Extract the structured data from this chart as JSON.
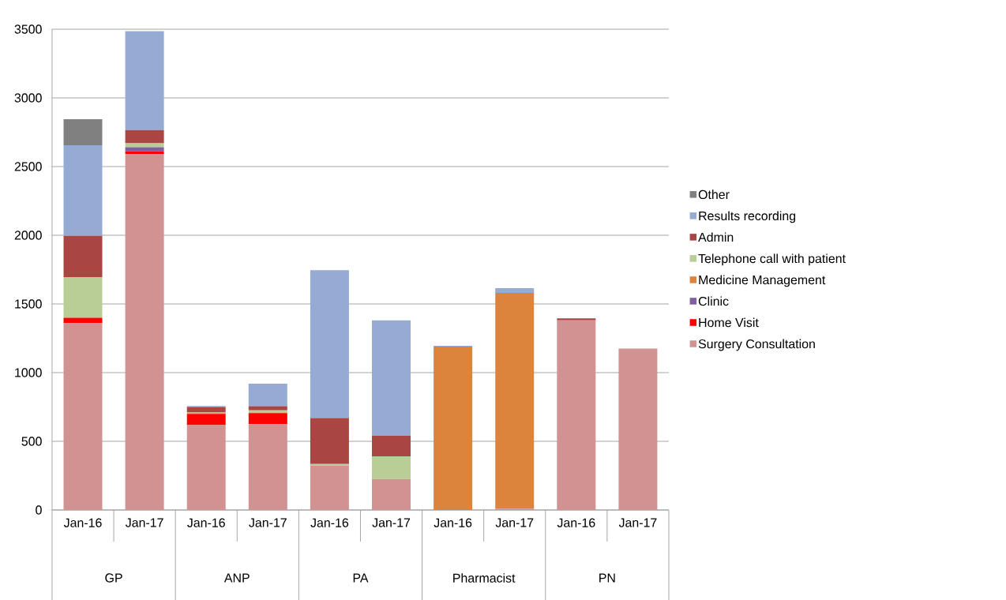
{
  "chart_data": {
    "type": "bar",
    "stacked": true,
    "categories": [
      "Jan-16",
      "Jan-17",
      "Jan-16",
      "Jan-17",
      "Jan-16",
      "Jan-17",
      "Jan-16",
      "Jan-17",
      "Jan-16",
      "Jan-17"
    ],
    "annotations": [
      "GP",
      "ANP",
      "PA",
      "Pharmacist",
      "PN"
    ],
    "series": [
      {
        "name": "Surgery Consultation",
        "color": "#d09392",
        "values": [
          1360,
          2590,
          620,
          625,
          325,
          225,
          null,
          10,
          1380,
          1175
        ]
      },
      {
        "name": "Home Visit",
        "color": "#ff0000",
        "values": [
          40,
          20,
          80,
          80,
          null,
          null,
          null,
          null,
          null,
          null
        ]
      },
      {
        "name": "Clinic",
        "color": "#7f5f9f",
        "values": [
          null,
          30,
          null,
          null,
          null,
          null,
          null,
          null,
          null,
          null
        ]
      },
      {
        "name": "Medicine Management",
        "color": "#dd843c",
        "values": [
          null,
          null,
          5,
          5,
          null,
          null,
          1190,
          1570,
          null,
          null
        ]
      },
      {
        "name": "Telephone call with patient",
        "color": "#b9cd96",
        "values": [
          295,
          30,
          5,
          15,
          10,
          165,
          null,
          null,
          null,
          null
        ]
      },
      {
        "name": "Admin",
        "color": "#a94643",
        "values": [
          300,
          95,
          40,
          30,
          335,
          150,
          null,
          null,
          15,
          null
        ]
      },
      {
        "name": "Results recording",
        "color": "#95abd3",
        "values": [
          660,
          720,
          7,
          165,
          1075,
          840,
          5,
          35,
          null,
          null
        ]
      },
      {
        "name": "Other",
        "color": "#808080",
        "values": [
          190,
          null,
          null,
          null,
          null,
          null,
          null,
          null,
          null,
          null
        ]
      }
    ],
    "ylim": [
      0,
      3500
    ],
    "yticks": [
      0,
      500,
      1000,
      1500,
      2000,
      2500,
      3000,
      3500
    ],
    "grid": "y",
    "legend": "right"
  }
}
